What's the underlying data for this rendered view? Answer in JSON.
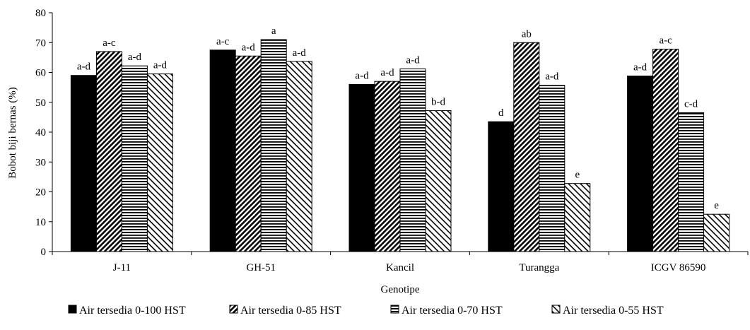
{
  "chart_data": {
    "type": "bar",
    "title": "",
    "xlabel": "Genotipe",
    "ylabel": "Bobot biji bernas (%)",
    "ylim": [
      0,
      80
    ],
    "yticks": [
      0,
      10,
      20,
      30,
      40,
      50,
      60,
      70,
      80
    ],
    "grid": false,
    "legend_position": "bottom",
    "categories": [
      "J-11",
      "GH-51",
      "Kancil",
      "Turangga",
      "ICGV 86590"
    ],
    "series": [
      {
        "name": "Air tersedia 0-100 HST",
        "pattern": "solid",
        "values": [
          59,
          67.5,
          56,
          43.5,
          58.8
        ],
        "labels": [
          "a-d",
          "a-c",
          "a-d",
          "d",
          "a-d"
        ]
      },
      {
        "name": "Air tersedia 0-85 HST",
        "pattern": "diagonal-dense",
        "values": [
          67,
          65.5,
          57,
          70,
          67.8
        ],
        "labels": [
          "a-c",
          "a-d",
          "a-d",
          "ab",
          "a-c"
        ]
      },
      {
        "name": "Air tersedia 0-70 HST",
        "pattern": "horizontal",
        "values": [
          62.2,
          71,
          61.2,
          55.7,
          46.5
        ],
        "labels": [
          "a-d",
          "a",
          "a-d",
          "a-d",
          "c-d"
        ]
      },
      {
        "name": "Air tersedia 0-55 HST",
        "pattern": "diagonal-light",
        "values": [
          59.5,
          63.7,
          47.2,
          22.8,
          12.5
        ],
        "labels": [
          "a-d",
          "a-d",
          "b-d",
          "e",
          "e"
        ]
      }
    ]
  }
}
